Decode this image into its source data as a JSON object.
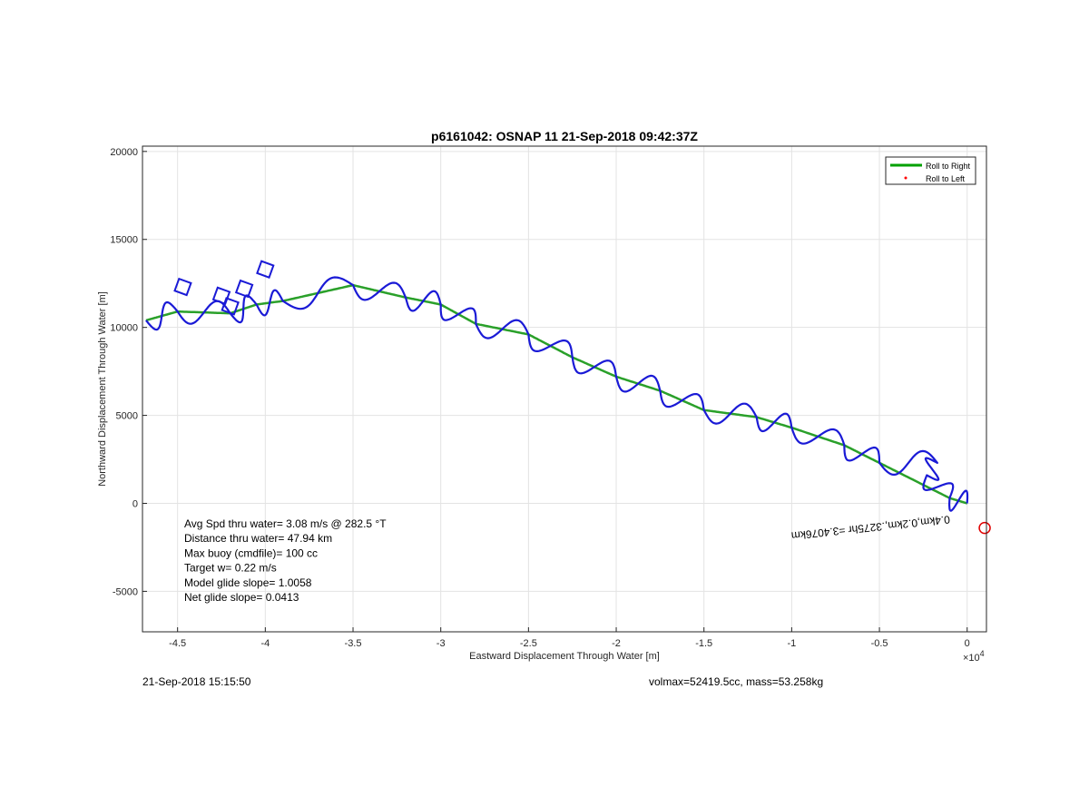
{
  "chart_data": {
    "type": "line",
    "title": "p6161042: OSNAP 11 21-Sep-2018 09:42:37Z",
    "xlabel": "Eastward Displacement Through Water [m]",
    "ylabel": "Northward Displacement Through Water [m]",
    "x_multiplier_label": "×10",
    "x_multiplier_exp": "4",
    "xlim": [
      -4.7,
      0.11
    ],
    "ylim": [
      -7300,
      20300
    ],
    "x_ticks": [
      -4.5,
      -4,
      -3.5,
      -3,
      -2.5,
      -2,
      -1.5,
      -1,
      -0.5,
      0
    ],
    "x_tick_labels": [
      "-4.5",
      "-4",
      "-3.5",
      "-3",
      "-2.5",
      "-2",
      "-1.5",
      "-1",
      "-0.5",
      "0"
    ],
    "y_ticks": [
      -5000,
      0,
      5000,
      10000,
      15000,
      20000
    ],
    "y_tick_labels": [
      "-5000",
      "0",
      "5000",
      "10000",
      "15000",
      "20000"
    ],
    "grid": true,
    "legend_position": "top-right",
    "legend": [
      {
        "label": "Roll to Right",
        "color": "#00a000",
        "marker": "line"
      },
      {
        "label": "Roll to Left",
        "color": "#ff0000",
        "marker": "dot"
      }
    ],
    "series": [
      {
        "name": "Roll to Right",
        "color": "#2aa02a",
        "x": [
          0.0,
          -0.1,
          -0.5,
          -0.7,
          -1.0,
          -1.2,
          -1.5,
          -1.75,
          -2.0,
          -2.25,
          -2.5,
          -2.8,
          -3.0,
          -3.2,
          -3.5,
          -3.9,
          -4.05,
          -4.2,
          -4.5,
          -4.68
        ],
        "y": [
          0,
          300,
          2300,
          3300,
          4300,
          4900,
          5300,
          6400,
          7200,
          8300,
          9600,
          10200,
          11300,
          11700,
          12400,
          11500,
          11300,
          10800,
          10900,
          10400
        ]
      },
      {
        "name": "Roll to Left",
        "color": "#1a1ad6",
        "x": [
          0.0,
          -0.1,
          -0.23,
          -0.17,
          -0.5,
          -0.7,
          -1.0,
          -1.2,
          -1.5,
          -1.75,
          -2.0,
          -2.25,
          -2.5,
          -2.8,
          -3.0,
          -3.2,
          -3.5,
          -3.9,
          -4.05,
          -4.2,
          -4.5,
          -4.68
        ],
        "y": [
          0,
          300,
          1600,
          2300,
          2300,
          3300,
          4300,
          4900,
          5300,
          6400,
          7200,
          8300,
          9600,
          10200,
          11300,
          11700,
          12400,
          11500,
          11300,
          10800,
          10900,
          10400
        ]
      }
    ],
    "annotations": [
      {
        "text": "Avg Spd thru water=  3.08 m/s @ 282.5 °T"
      },
      {
        "text": "Distance thru water= 47.94 km"
      },
      {
        "text": "Max buoy (cmdfile)= 100 cc"
      },
      {
        "text": "Target w= 0.22 m/s"
      },
      {
        "text": "Model glide slope= 1.0058"
      },
      {
        "text": "Net glide slope= 0.0413"
      }
    ],
    "rotated_label": {
      "text": "0.4km,0.2km,.3275hr =3.4076km",
      "x": -0.1,
      "y": -700
    },
    "end_marker": {
      "x": 0.1,
      "y": -1400,
      "color": "#e00000"
    }
  },
  "footer": {
    "timestamp": "21-Sep-2018 15:15:50",
    "vol_mass": "volmax=52419.5cc, mass=53.258kg"
  }
}
